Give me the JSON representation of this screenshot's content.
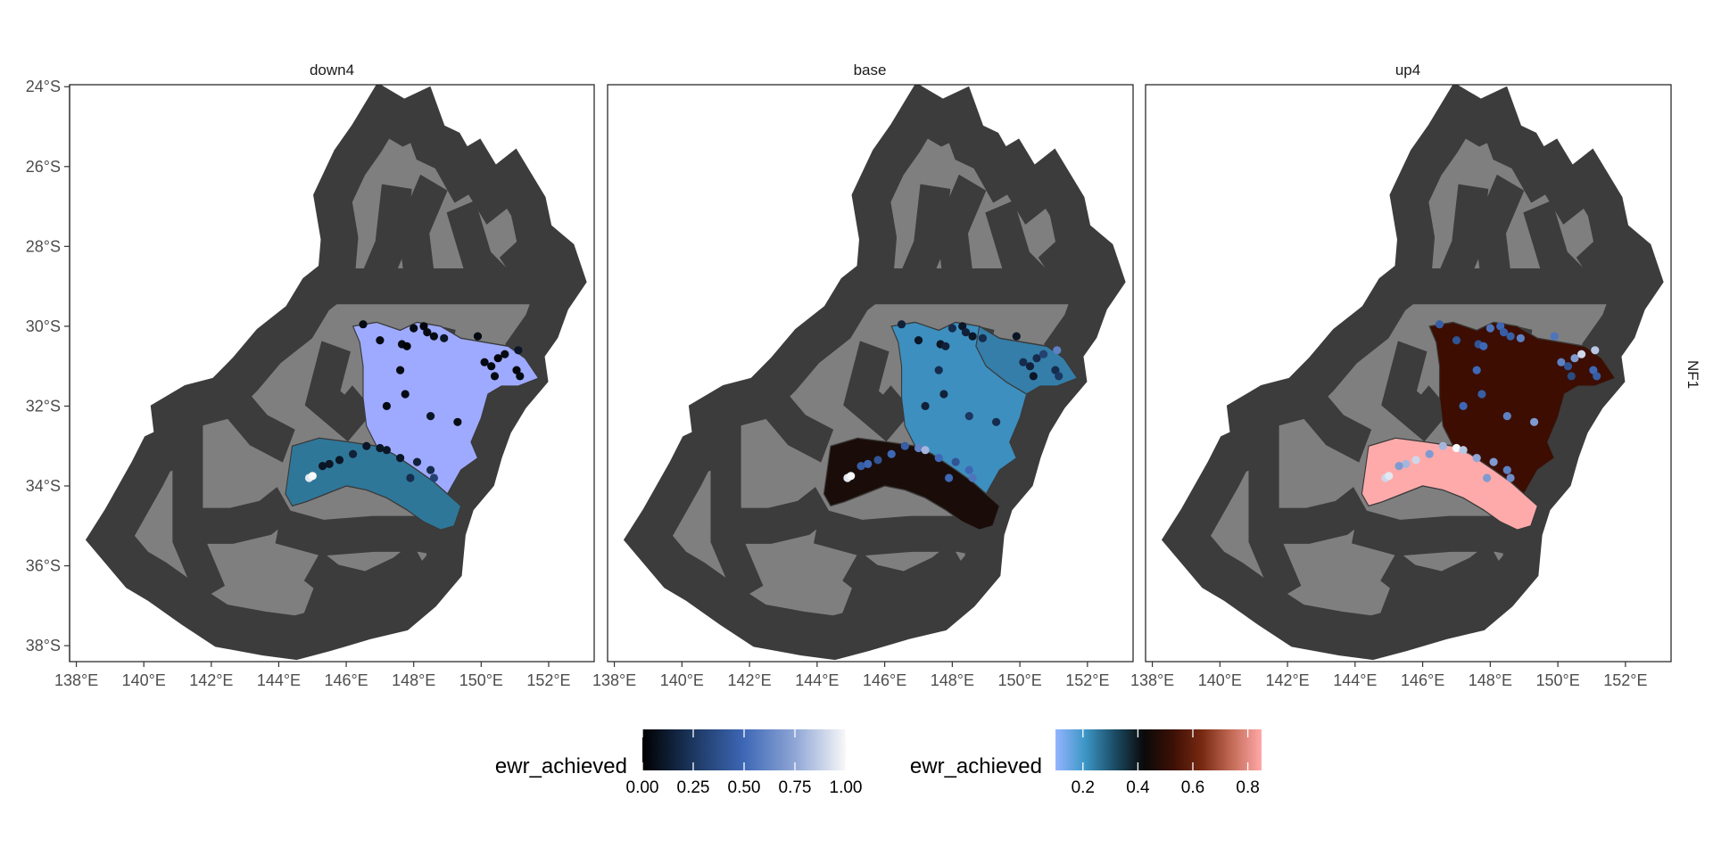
{
  "facet_labels": [
    "down4",
    "base",
    "up4"
  ],
  "row_strip_label": "NF1",
  "y_ticks": [
    "24°S",
    "26°S",
    "28°S",
    "30°S",
    "32°S",
    "34°S",
    "36°S",
    "38°S"
  ],
  "x_ticks": [
    "138°E",
    "140°E",
    "142°E",
    "144°E",
    "146°E",
    "148°E",
    "150°E",
    "152°E"
  ],
  "colors": {
    "basin_fill": "#7f7f7f",
    "basin_border": "#3c3c3c",
    "panel_border": "#1a1a1a",
    "down4": {
      "north": "#9eaaff",
      "south": "#2f7799"
    },
    "base": {
      "north": "#3d8fbf",
      "north_east": "#347ea9",
      "south": "#1a0c08"
    },
    "up4": {
      "north": "#3c0d00",
      "south": "#ffaaaa"
    }
  },
  "legends": [
    {
      "title": "ewr_achieved",
      "tick_labels": [
        "0.00",
        "0.25",
        "0.50",
        "0.75",
        "1.00"
      ],
      "tick_values": [
        0,
        0.25,
        0.5,
        0.75,
        1.0
      ],
      "range": [
        0,
        1
      ],
      "gradient": [
        "#000000",
        "#1c3760",
        "#3e68b6",
        "#8fa6d6",
        "#f8f8f8"
      ]
    },
    {
      "title": "ewr_achieved",
      "tick_labels": [
        "0.2",
        "0.4",
        "0.6",
        "0.8"
      ],
      "tick_values": [
        0.2,
        0.4,
        0.6,
        0.8
      ],
      "range": [
        0.1,
        0.85
      ],
      "gradient": [
        "#93b4ff",
        "#3d97c6",
        "#1b4d66",
        "#0a0a0a",
        "#3c1005",
        "#7a2a12",
        "#c46c58",
        "#ffa8a8"
      ]
    }
  ]
}
